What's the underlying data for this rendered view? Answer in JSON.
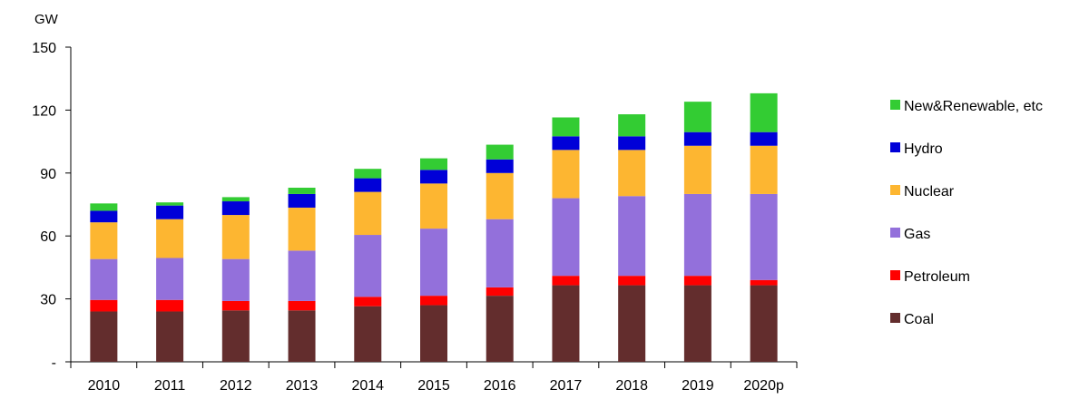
{
  "chart_data": {
    "type": "bar",
    "stacked": true,
    "title": "",
    "xlabel": "",
    "ylabel": "GW",
    "ylim": [
      0,
      150
    ],
    "yticks": [
      0,
      30,
      60,
      90,
      120,
      150
    ],
    "ytick_labels": [
      "-",
      "30",
      "60",
      "90",
      "120",
      "150"
    ],
    "grid": false,
    "legend_position": "right",
    "categories": [
      "2010",
      "2011",
      "2012",
      "2013",
      "2014",
      "2015",
      "2016",
      "2017",
      "2018",
      "2019",
      "2020p"
    ],
    "series": [
      {
        "name": "Coal",
        "color": "#632d2d",
        "values": [
          24,
          24,
          24.5,
          24.5,
          26.5,
          27,
          31.5,
          36.5,
          36.5,
          36.5,
          36.5
        ]
      },
      {
        "name": "Petroleum",
        "color": "#ff0000",
        "values": [
          5.5,
          5.5,
          4.5,
          4.5,
          4.5,
          4.5,
          4,
          4.5,
          4.5,
          4.5,
          2.5
        ]
      },
      {
        "name": "Gas",
        "color": "#9370db",
        "values": [
          19.5,
          20,
          20,
          24,
          29.5,
          32,
          32.5,
          37,
          38,
          39,
          41
        ]
      },
      {
        "name": "Nuclear",
        "color": "#fdb631",
        "values": [
          17.5,
          18.5,
          21,
          20.5,
          20.5,
          21.5,
          22,
          23,
          22,
          23,
          23
        ]
      },
      {
        "name": "Hydro",
        "color": "#0000d8",
        "values": [
          5.5,
          6.5,
          6.5,
          6.5,
          6.5,
          6.5,
          6.5,
          6.5,
          6.5,
          6.5,
          6.5
        ]
      },
      {
        "name": "New&Renewable, etc",
        "color": "#33cc33",
        "values": [
          3.5,
          1.5,
          2,
          3,
          4.5,
          5.5,
          7,
          9,
          10.5,
          14.5,
          18.5
        ]
      }
    ]
  }
}
